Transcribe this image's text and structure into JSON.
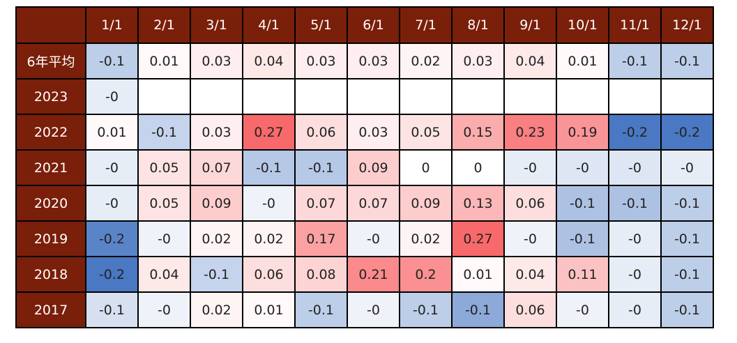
{
  "colors": {
    "header_bg": "#7a1f0a",
    "header_text": "#ffffff",
    "low": "#4a78c2",
    "mid": "#ffffff",
    "high": "#f8696b"
  },
  "chart_data": {
    "type": "heatmap",
    "title": "",
    "xlabel": "",
    "ylabel": "",
    "corner_label": "",
    "columns": [
      "1/1",
      "2/1",
      "3/1",
      "4/1",
      "5/1",
      "6/1",
      "7/1",
      "8/1",
      "9/1",
      "10/1",
      "11/1",
      "12/1"
    ],
    "rows": [
      {
        "label": "6年平均",
        "values": [
          "-0.1",
          "0.01",
          "0.03",
          "0.04",
          "0.03",
          "0.03",
          "0.02",
          "0.03",
          "0.04",
          "0.01",
          "-0.1",
          "-0.1"
        ]
      },
      {
        "label": "2023",
        "values": [
          "-0",
          "",
          "",
          "",
          "",
          "",
          "",
          "",
          "",
          "",
          "",
          ""
        ]
      },
      {
        "label": "2022",
        "values": [
          "0.01",
          "-0.1",
          "0.03",
          "0.27",
          "0.06",
          "0.03",
          "0.05",
          "0.15",
          "0.23",
          "0.19",
          "-0.2",
          "-0.2"
        ]
      },
      {
        "label": "2021",
        "values": [
          "-0",
          "0.05",
          "0.07",
          "-0.1",
          "-0.1",
          "0.09",
          "0",
          "0",
          "-0",
          "-0",
          "-0",
          "-0"
        ]
      },
      {
        "label": "2020",
        "values": [
          "-0",
          "0.05",
          "0.09",
          "-0",
          "0.07",
          "0.07",
          "0.09",
          "0.13",
          "0.06",
          "-0.1",
          "-0.1",
          "-0.1"
        ]
      },
      {
        "label": "2019",
        "values": [
          "-0.2",
          "-0",
          "0.02",
          "0.02",
          "0.17",
          "-0",
          "0.02",
          "0.27",
          "-0",
          "-0.1",
          "-0",
          "-0.1"
        ]
      },
      {
        "label": "2018",
        "values": [
          "-0.2",
          "0.04",
          "-0.1",
          "0.06",
          "0.08",
          "0.21",
          "0.2",
          "0.01",
          "0.04",
          "0.11",
          "-0",
          "-0.1"
        ]
      },
      {
        "label": "2017",
        "values": [
          "-0.1",
          "-0",
          "0.02",
          "0.01",
          "-0.1",
          "-0",
          "-0.1",
          "-0.1",
          "0.06",
          "-0",
          "-0",
          "-0.1"
        ]
      }
    ],
    "shading": [
      [
        -0.08,
        0.01,
        0.03,
        0.04,
        0.03,
        0.03,
        0.02,
        0.03,
        0.04,
        0.01,
        -0.08,
        -0.08
      ],
      [
        -0.03,
        null,
        null,
        null,
        null,
        null,
        null,
        null,
        null,
        null,
        null,
        null
      ],
      [
        0.01,
        -0.07,
        0.03,
        0.27,
        0.06,
        0.03,
        0.05,
        0.15,
        0.23,
        0.19,
        -0.22,
        -0.22
      ],
      [
        -0.03,
        0.05,
        0.07,
        -0.09,
        -0.09,
        0.09,
        0.0,
        0.0,
        -0.03,
        -0.04,
        -0.04,
        -0.03
      ],
      [
        -0.03,
        0.05,
        0.09,
        -0.02,
        0.07,
        0.07,
        0.09,
        0.13,
        0.06,
        -0.1,
        -0.1,
        -0.08
      ],
      [
        -0.2,
        -0.02,
        0.02,
        0.02,
        0.17,
        -0.02,
        0.02,
        0.27,
        -0.02,
        -0.1,
        -0.03,
        -0.08
      ],
      [
        -0.22,
        0.04,
        -0.07,
        0.06,
        0.08,
        0.21,
        0.2,
        0.01,
        0.04,
        0.11,
        -0.03,
        -0.08
      ],
      [
        -0.05,
        -0.02,
        0.02,
        0.01,
        -0.08,
        -0.02,
        -0.08,
        -0.14,
        0.06,
        -0.02,
        -0.03,
        -0.08
      ]
    ],
    "color_scale": {
      "min": -0.22,
      "mid": 0,
      "max": 0.27
    },
    "grid": true,
    "legend": "none"
  }
}
